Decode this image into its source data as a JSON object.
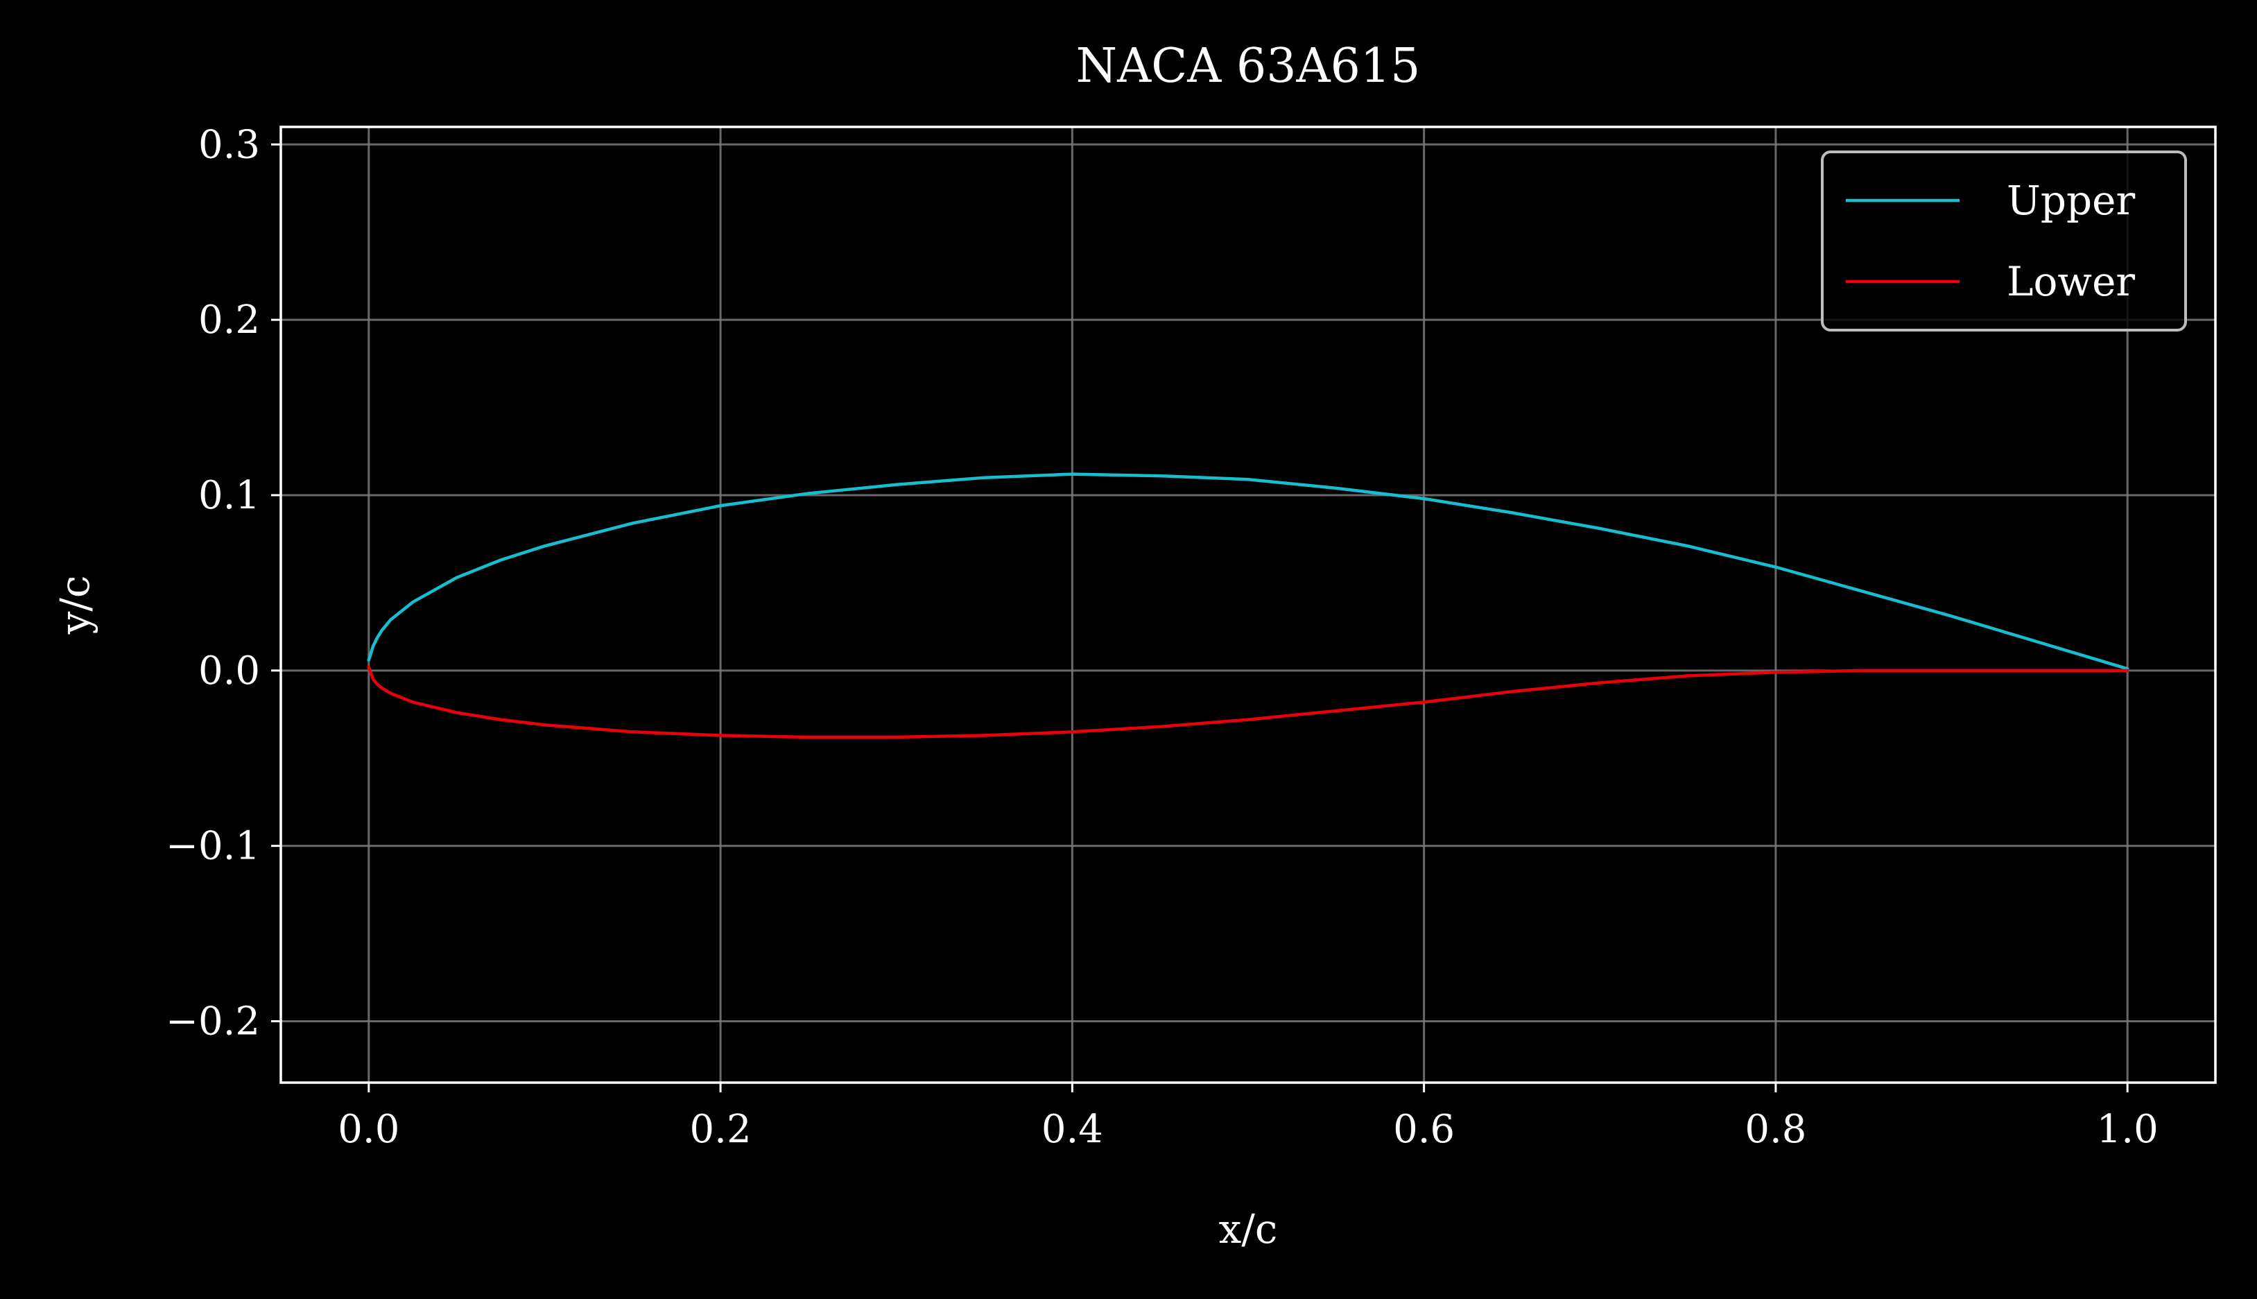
{
  "chart_data": {
    "type": "line",
    "title": "NACA 63A615",
    "xlabel": "x/c",
    "ylabel": "y/c",
    "xlim": [
      -0.05,
      1.05
    ],
    "ylim": [
      -0.235,
      0.31
    ],
    "x_ticks": [
      0.0,
      0.2,
      0.4,
      0.6,
      0.8,
      1.0
    ],
    "x_tick_labels": [
      "0.0",
      "0.2",
      "0.4",
      "0.6",
      "0.8",
      "1.0"
    ],
    "y_ticks": [
      0.3,
      0.2,
      0.1,
      0.0,
      -0.1,
      -0.2
    ],
    "y_tick_labels": [
      "0.3",
      "0.2",
      "0.1",
      "0.0",
      "−0.1",
      "−0.2"
    ],
    "grid": true,
    "legend_position": "top-right",
    "background": "#000000",
    "axes_color": "#ffffff",
    "grid_color": "#7a7a7a",
    "series": [
      {
        "name": "Upper",
        "color": "#17becf",
        "x": [
          0.0,
          0.0025,
          0.005,
          0.0075,
          0.0125,
          0.025,
          0.05,
          0.075,
          0.1,
          0.15,
          0.2,
          0.25,
          0.3,
          0.35,
          0.4,
          0.45,
          0.5,
          0.55,
          0.6,
          0.65,
          0.7,
          0.75,
          0.8,
          0.85,
          0.9,
          0.95,
          0.99,
          1.0
        ],
        "y": [
          0.006,
          0.014,
          0.019,
          0.023,
          0.029,
          0.039,
          0.053,
          0.063,
          0.071,
          0.084,
          0.094,
          0.101,
          0.106,
          0.11,
          0.112,
          0.111,
          0.109,
          0.104,
          0.098,
          0.09,
          0.081,
          0.071,
          0.059,
          0.045,
          0.031,
          0.016,
          0.004,
          0.001
        ]
      },
      {
        "name": "Lower",
        "color": "#e8000b",
        "x": [
          0.0,
          0.0025,
          0.005,
          0.0075,
          0.0125,
          0.025,
          0.05,
          0.075,
          0.1,
          0.15,
          0.2,
          0.25,
          0.3,
          0.35,
          0.4,
          0.45,
          0.5,
          0.55,
          0.6,
          0.65,
          0.7,
          0.75,
          0.8,
          0.85,
          0.9,
          0.95,
          1.0
        ],
        "y": [
          0.002,
          -0.005,
          -0.008,
          -0.01,
          -0.013,
          -0.018,
          -0.024,
          -0.028,
          -0.031,
          -0.035,
          -0.037,
          -0.038,
          -0.038,
          -0.037,
          -0.035,
          -0.032,
          -0.028,
          -0.023,
          -0.018,
          -0.012,
          -0.007,
          -0.003,
          -0.001,
          0.0,
          0.0,
          0.0,
          0.0
        ]
      }
    ]
  }
}
